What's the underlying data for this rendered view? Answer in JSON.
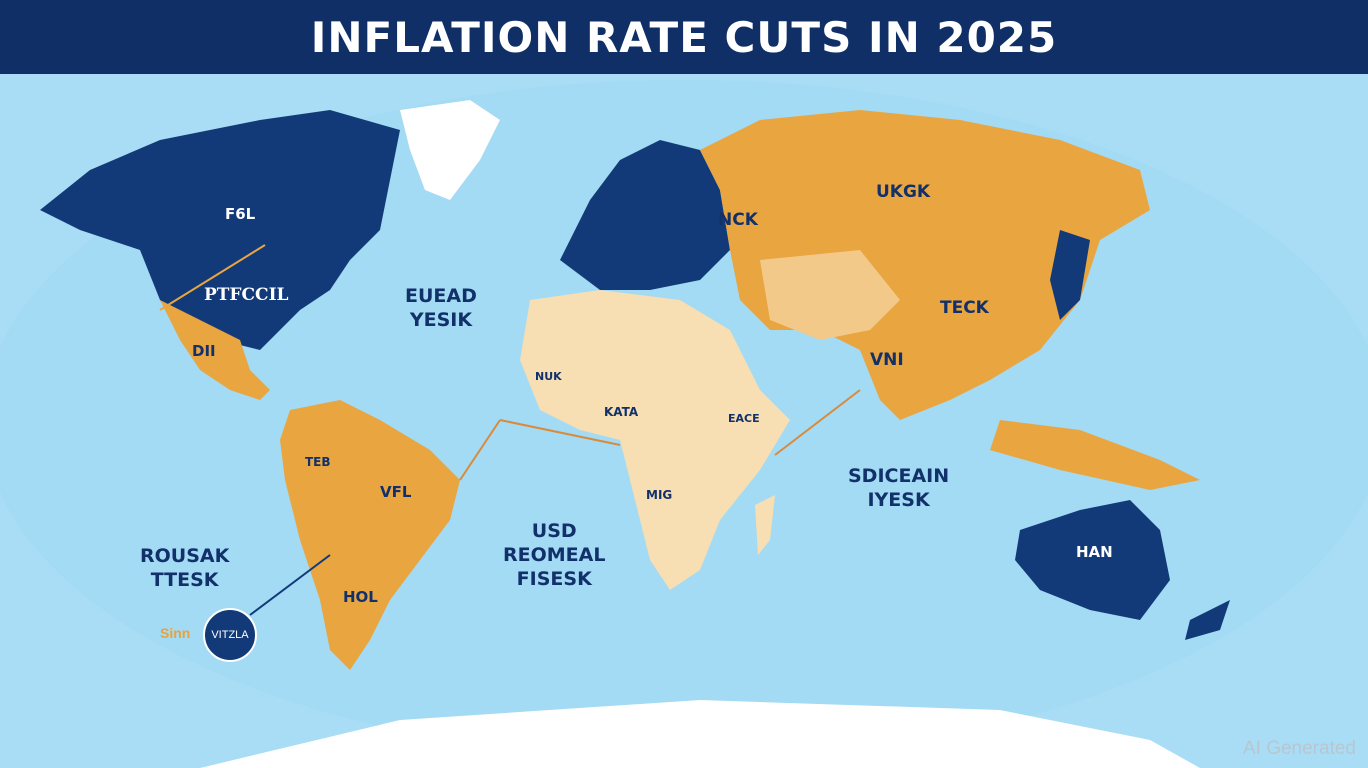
{
  "header": {
    "title": "INFLATION RATE CUTS IN 2025"
  },
  "colors": {
    "navy": "#123a78",
    "orange": "#e9a540",
    "light_orange": "#f3c98a",
    "cream": "#f7dfb3",
    "ocean": "#a8ddf5"
  },
  "ocean_labels": {
    "north_atlantic": [
      "EUEAD",
      "YESIK"
    ],
    "south_pacific": [
      "ROUSAK",
      "TTESK"
    ],
    "south_atlantic": [
      "USD",
      "REOMEAL",
      "FISESK"
    ],
    "indian": [
      "SDICEAIN",
      "IYESK"
    ]
  },
  "country_labels": {
    "canada": "F6L",
    "usa": "PTFCCIL",
    "mexico": "DII",
    "russia": "UKGK",
    "eastern_europe": "NCK",
    "china": "TECK",
    "india": "VNI",
    "australia": "HAN",
    "brazil": "VFL",
    "argentina": "HOL",
    "colombia": "TEB",
    "west_africa": "NUK",
    "nigeria": "KATA",
    "central_africa": "MIG",
    "east_africa": "EACE"
  },
  "badge": {
    "text": "VITZLA",
    "side_label": "Sinn"
  },
  "watermark": "AI Generated"
}
